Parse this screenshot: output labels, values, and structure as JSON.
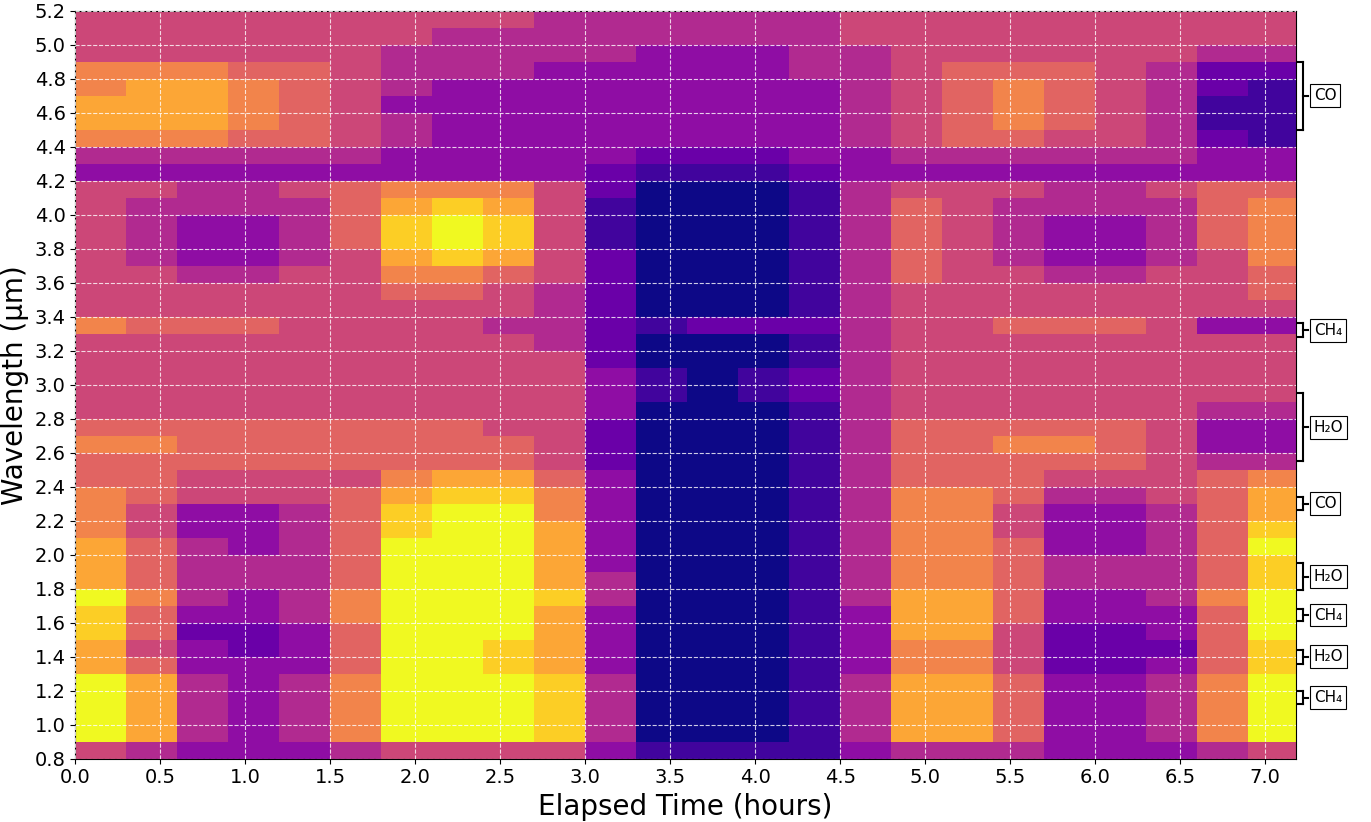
{
  "chart_data": {
    "type": "heatmap",
    "xlabel": "Elapsed Time (hours)",
    "ylabel": "Wavelength (μm)",
    "color": "plasma",
    "grid": true,
    "xlim": [
      0,
      7.18
    ],
    "ylim": [
      0.8,
      5.2
    ],
    "xticks": [
      {
        "value": 0,
        "label": "0.0"
      },
      {
        "value": 0.5,
        "label": "0.5"
      },
      {
        "value": 1,
        "label": "1.0"
      },
      {
        "value": 1.5,
        "label": "1.5"
      },
      {
        "value": 2,
        "label": "2.0"
      },
      {
        "value": 2.5,
        "label": "2.5"
      },
      {
        "value": 3,
        "label": "3.0"
      },
      {
        "value": 3.5,
        "label": "3.5"
      },
      {
        "value": 4,
        "label": "4.0"
      },
      {
        "value": 4.5,
        "label": "4.5"
      },
      {
        "value": 5,
        "label": "5.0"
      },
      {
        "value": 5.5,
        "label": "5.5"
      },
      {
        "value": 6,
        "label": "6.0"
      },
      {
        "value": 6.5,
        "label": "6.5"
      },
      {
        "value": 7,
        "label": "7.0"
      }
    ],
    "yticks": [
      0.8,
      {
        "value": 1,
        "label": "1.0"
      },
      1.2,
      1.4,
      1.6,
      1.8,
      {
        "value": 2,
        "label": "2.0"
      },
      2.2,
      2.4,
      2.6,
      2.8,
      {
        "value": 3,
        "label": "3.0"
      },
      3.2,
      3.4,
      3.6,
      3.8,
      {
        "value": 4,
        "label": "4.0"
      },
      4.2,
      4.4,
      4.6,
      4.8,
      {
        "value": 5,
        "label": "5.0"
      },
      5.2
    ],
    "zlim": [
      0,
      10
    ],
    "x": [
      0,
      0.3,
      0.6,
      0.9,
      1.2,
      1.5,
      1.8,
      2.1,
      2.4,
      2.7,
      3.0,
      3.3,
      3.6,
      3.9,
      4.2,
      4.5,
      4.8,
      5.1,
      5.4,
      5.7,
      6.0,
      6.3,
      6.6,
      6.9,
      7.2
    ],
    "y": [
      0.8,
      0.9,
      1.0,
      1.1,
      1.2,
      1.3,
      1.4,
      1.5,
      1.6,
      1.7,
      1.8,
      1.9,
      2.0,
      2.1,
      2.2,
      2.3,
      2.4,
      2.5,
      2.6,
      2.7,
      2.8,
      2.9,
      3.0,
      3.1,
      3.2,
      3.3,
      3.4,
      3.5,
      3.6,
      3.7,
      3.8,
      3.9,
      4.0,
      4.1,
      4.2,
      4.3,
      4.4,
      4.5,
      4.6,
      4.7,
      4.8,
      4.9,
      5.0,
      5.1,
      5.2
    ],
    "values": [
      [
        5,
        4,
        3,
        3,
        3,
        4,
        5,
        5,
        5,
        5,
        3,
        1,
        1,
        1,
        1,
        3,
        4,
        4,
        4,
        3,
        3,
        3,
        4,
        5
      ],
      [
        10,
        8,
        4,
        3,
        4,
        7,
        10,
        10,
        10,
        9,
        4,
        0,
        0,
        0,
        1,
        4,
        8,
        8,
        6,
        3,
        3,
        4,
        7,
        10
      ],
      [
        10,
        8,
        4,
        3,
        4,
        7,
        10,
        10,
        10,
        9,
        4,
        0,
        0,
        0,
        1,
        4,
        8,
        8,
        6,
        3,
        3,
        4,
        7,
        10
      ],
      [
        10,
        8,
        4,
        3,
        4,
        7,
        10,
        10,
        10,
        9,
        4,
        0,
        0,
        0,
        1,
        4,
        8,
        8,
        6,
        3,
        3,
        4,
        7,
        10
      ],
      [
        10,
        8,
        4,
        3,
        4,
        7,
        10,
        10,
        10,
        9,
        4,
        0,
        0,
        0,
        1,
        4,
        8,
        8,
        6,
        3,
        3,
        4,
        7,
        10
      ],
      [
        8,
        6,
        3,
        3,
        3,
        6,
        10,
        10,
        9,
        8,
        3,
        0,
        0,
        0,
        1,
        3,
        7,
        7,
        5,
        2,
        2,
        3,
        6,
        9
      ],
      [
        8,
        5,
        3,
        2,
        3,
        6,
        10,
        10,
        9,
        8,
        3,
        0,
        0,
        0,
        1,
        3,
        7,
        7,
        5,
        2,
        2,
        2,
        6,
        9
      ],
      [
        9,
        6,
        2,
        2,
        3,
        6,
        10,
        10,
        10,
        8,
        3,
        0,
        0,
        0,
        1,
        3,
        8,
        8,
        5,
        2,
        2,
        3,
        6,
        10
      ],
      [
        9,
        6,
        3,
        3,
        4,
        7,
        10,
        10,
        10,
        8,
        3,
        0,
        0,
        0,
        1,
        3,
        8,
        8,
        6,
        3,
        3,
        3,
        6,
        10
      ],
      [
        10,
        7,
        4,
        3,
        4,
        7,
        10,
        10,
        10,
        9,
        4,
        0,
        0,
        0,
        1,
        4,
        8,
        8,
        6,
        3,
        3,
        4,
        7,
        10
      ],
      [
        8,
        6,
        4,
        4,
        4,
        6,
        10,
        10,
        10,
        8,
        4,
        0,
        0,
        0,
        1,
        4,
        7,
        7,
        6,
        4,
        4,
        4,
        6,
        9
      ],
      [
        8,
        6,
        4,
        4,
        4,
        6,
        10,
        10,
        10,
        8,
        3,
        0,
        0,
        0,
        1,
        4,
        7,
        7,
        6,
        4,
        4,
        4,
        6,
        9
      ],
      [
        8,
        6,
        4,
        3,
        4,
        6,
        10,
        10,
        10,
        8,
        3,
        0,
        0,
        0,
        1,
        4,
        7,
        7,
        6,
        3,
        3,
        4,
        6,
        10
      ],
      [
        7,
        5,
        3,
        3,
        4,
        6,
        9,
        10,
        10,
        8,
        3,
        0,
        0,
        0,
        1,
        4,
        7,
        7,
        5,
        3,
        3,
        4,
        6,
        9
      ],
      [
        7,
        5,
        3,
        3,
        4,
        6,
        9,
        10,
        10,
        7,
        3,
        0,
        0,
        0,
        1,
        4,
        7,
        7,
        5,
        3,
        3,
        4,
        6,
        8
      ],
      [
        7,
        6,
        5,
        5,
        5,
        6,
        8,
        9,
        9,
        7,
        3,
        0,
        0,
        0,
        1,
        4,
        7,
        7,
        6,
        4,
        4,
        5,
        6,
        8
      ],
      [
        6,
        6,
        5,
        5,
        5,
        5,
        7,
        8,
        8,
        6,
        3,
        0,
        0,
        0,
        1,
        4,
        6,
        6,
        6,
        5,
        5,
        5,
        6,
        7
      ],
      [
        6,
        6,
        6,
        6,
        6,
        6,
        6,
        6,
        6,
        5,
        2,
        0,
        0,
        0,
        1,
        4,
        6,
        6,
        6,
        6,
        6,
        5,
        4,
        4
      ],
      [
        7,
        7,
        6,
        6,
        6,
        6,
        6,
        6,
        6,
        5,
        2,
        0,
        0,
        0,
        1,
        4,
        6,
        6,
        7,
        7,
        6,
        5,
        3,
        3
      ],
      [
        6,
        6,
        6,
        6,
        6,
        6,
        6,
        6,
        5,
        5,
        2,
        0,
        0,
        0,
        1,
        4,
        6,
        6,
        6,
        6,
        6,
        5,
        3,
        3
      ],
      [
        5,
        5,
        5,
        5,
        5,
        5,
        5,
        5,
        5,
        5,
        3,
        0,
        0,
        0,
        1,
        4,
        5,
        5,
        5,
        5,
        5,
        5,
        4,
        4
      ],
      [
        5,
        5,
        5,
        5,
        5,
        5,
        5,
        5,
        5,
        5,
        3,
        1,
        0,
        1,
        2,
        4,
        5,
        5,
        5,
        5,
        5,
        5,
        5,
        5
      ],
      [
        5,
        5,
        5,
        5,
        5,
        5,
        5,
        5,
        5,
        5,
        3,
        1,
        0,
        1,
        2,
        4,
        5,
        5,
        5,
        5,
        5,
        5,
        5,
        5
      ],
      [
        5,
        5,
        5,
        5,
        5,
        5,
        5,
        5,
        5,
        5,
        2,
        0,
        0,
        0,
        1,
        4,
        5,
        5,
        5,
        5,
        5,
        5,
        5,
        5
      ],
      [
        5,
        5,
        5,
        5,
        5,
        5,
        5,
        5,
        5,
        4,
        2,
        0,
        0,
        0,
        1,
        4,
        5,
        5,
        5,
        5,
        5,
        5,
        5,
        5
      ],
      [
        7,
        6,
        6,
        6,
        5,
        5,
        5,
        5,
        4,
        4,
        2,
        1,
        2,
        2,
        2,
        4,
        5,
        5,
        6,
        6,
        6,
        5,
        3,
        3
      ],
      [
        5,
        5,
        5,
        5,
        5,
        5,
        5,
        5,
        5,
        4,
        2,
        0,
        0,
        0,
        1,
        4,
        5,
        5,
        5,
        5,
        5,
        5,
        5,
        5
      ],
      [
        5,
        5,
        5,
        5,
        5,
        5,
        6,
        6,
        5,
        4,
        2,
        0,
        0,
        0,
        1,
        4,
        5,
        5,
        5,
        5,
        5,
        5,
        5,
        6
      ],
      [
        5,
        5,
        4,
        4,
        5,
        5,
        7,
        7,
        6,
        5,
        2,
        0,
        0,
        0,
        1,
        4,
        6,
        5,
        5,
        4,
        4,
        5,
        5,
        6
      ],
      [
        5,
        4,
        3,
        3,
        4,
        5,
        8,
        9,
        8,
        5,
        2,
        0,
        0,
        0,
        1,
        4,
        6,
        5,
        4,
        3,
        3,
        4,
        5,
        7
      ],
      [
        5,
        4,
        3,
        3,
        4,
        6,
        9,
        10,
        9,
        5,
        1,
        0,
        0,
        0,
        1,
        4,
        6,
        5,
        4,
        3,
        3,
        4,
        6,
        7
      ],
      [
        5,
        4,
        3,
        3,
        4,
        6,
        9,
        10,
        9,
        5,
        1,
        0,
        0,
        0,
        1,
        4,
        6,
        5,
        4,
        3,
        3,
        4,
        6,
        7
      ],
      [
        5,
        4,
        4,
        4,
        4,
        6,
        8,
        9,
        8,
        5,
        1,
        0,
        0,
        0,
        1,
        4,
        6,
        5,
        4,
        4,
        4,
        4,
        6,
        7
      ],
      [
        5,
        5,
        4,
        4,
        5,
        6,
        7,
        7,
        7,
        5,
        2,
        0,
        0,
        0,
        1,
        4,
        5,
        5,
        5,
        4,
        4,
        5,
        6,
        6
      ],
      [
        3,
        3,
        3,
        3,
        3,
        3,
        3,
        3,
        3,
        3,
        2,
        1,
        1,
        1,
        2,
        3,
        3,
        3,
        3,
        3,
        3,
        3,
        3,
        3
      ],
      [
        4,
        4,
        4,
        4,
        4,
        4,
        3,
        3,
        3,
        3,
        3,
        2,
        2,
        2,
        3,
        3,
        4,
        4,
        4,
        4,
        4,
        4,
        3,
        3
      ],
      [
        7,
        7,
        7,
        6,
        6,
        5,
        4,
        3,
        3,
        3,
        3,
        3,
        3,
        3,
        3,
        4,
        5,
        6,
        6,
        5,
        5,
        4,
        2,
        1
      ],
      [
        8,
        8,
        8,
        7,
        6,
        5,
        4,
        3,
        3,
        3,
        3,
        3,
        3,
        3,
        3,
        4,
        5,
        6,
        7,
        6,
        5,
        4,
        1,
        1
      ],
      [
        8,
        8,
        8,
        7,
        6,
        5,
        3,
        3,
        3,
        3,
        3,
        3,
        3,
        3,
        3,
        4,
        5,
        6,
        7,
        6,
        5,
        4,
        1,
        1
      ],
      [
        7,
        8,
        8,
        7,
        6,
        5,
        4,
        3,
        3,
        3,
        3,
        3,
        3,
        3,
        3,
        4,
        5,
        6,
        7,
        6,
        5,
        4,
        2,
        1
      ],
      [
        7,
        7,
        7,
        6,
        6,
        5,
        4,
        4,
        4,
        3,
        3,
        3,
        3,
        3,
        4,
        4,
        5,
        6,
        6,
        6,
        5,
        4,
        2,
        2
      ],
      [
        5,
        5,
        5,
        5,
        5,
        5,
        4,
        4,
        4,
        4,
        4,
        3,
        3,
        3,
        4,
        4,
        5,
        5,
        5,
        5,
        5,
        5,
        4,
        4
      ],
      [
        5,
        5,
        5,
        5,
        5,
        5,
        5,
        4,
        4,
        4,
        4,
        4,
        4,
        4,
        4,
        5,
        5,
        5,
        5,
        5,
        5,
        5,
        5,
        5
      ],
      [
        5,
        5,
        5,
        5,
        5,
        5,
        5,
        5,
        5,
        4,
        4,
        4,
        4,
        4,
        4,
        5,
        5,
        5,
        5,
        5,
        5,
        5,
        5,
        5
      ]
    ],
    "annotations": [
      {
        "text": "CO",
        "range": [
          4.5,
          4.9
        ]
      },
      {
        "text": "CH₄",
        "range": [
          3.28,
          3.36
        ]
      },
      {
        "text": "H₂O",
        "range": [
          2.55,
          2.95
        ]
      },
      {
        "text": "CO",
        "range": [
          2.26,
          2.34
        ]
      },
      {
        "text": "H₂O",
        "range": [
          1.79,
          1.95
        ]
      },
      {
        "text": "CH₄",
        "range": [
          1.61,
          1.68
        ]
      },
      {
        "text": "H₂O",
        "range": [
          1.36,
          1.44
        ]
      },
      {
        "text": "CH₄",
        "range": [
          1.12,
          1.2
        ]
      }
    ]
  }
}
